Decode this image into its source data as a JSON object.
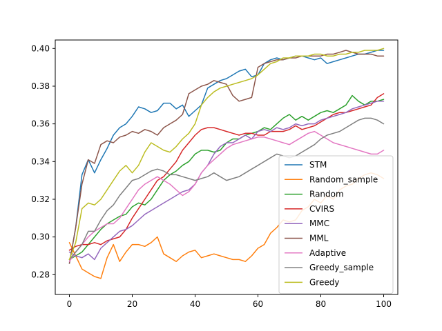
{
  "chart_data": {
    "type": "line",
    "title": "",
    "xlabel": "",
    "ylabel": "",
    "xlim": [
      -4.5,
      104.5
    ],
    "ylim": [
      0.2695,
      0.4045
    ],
    "xticks": [
      0,
      20,
      40,
      60,
      80,
      100
    ],
    "yticks": [
      0.28,
      0.3,
      0.32,
      0.34,
      0.36,
      0.38,
      0.4
    ],
    "ytick_labels": [
      "0.28",
      "0.30",
      "0.32",
      "0.34",
      "0.36",
      "0.38",
      "0.40"
    ],
    "grid": false,
    "legend_position": "lower-right",
    "x": [
      0,
      2,
      4,
      6,
      8,
      10,
      12,
      14,
      16,
      18,
      20,
      22,
      24,
      26,
      28,
      30,
      32,
      34,
      36,
      38,
      40,
      42,
      44,
      46,
      48,
      50,
      52,
      54,
      56,
      58,
      60,
      62,
      64,
      66,
      68,
      70,
      72,
      74,
      76,
      78,
      80,
      82,
      84,
      86,
      88,
      90,
      92,
      94,
      96,
      98,
      100
    ],
    "series": [
      {
        "name": "STM",
        "color": "#1f77b4",
        "values": [
          0.286,
          0.305,
          0.333,
          0.341,
          0.334,
          0.341,
          0.347,
          0.354,
          0.358,
          0.36,
          0.364,
          0.369,
          0.368,
          0.366,
          0.367,
          0.371,
          0.371,
          0.368,
          0.37,
          0.364,
          0.367,
          0.37,
          0.379,
          0.381,
          0.383,
          0.384,
          0.386,
          0.388,
          0.389,
          0.385,
          0.386,
          0.392,
          0.394,
          0.395,
          0.394,
          0.395,
          0.396,
          0.396,
          0.395,
          0.394,
          0.395,
          0.392,
          0.393,
          0.394,
          0.395,
          0.396,
          0.397,
          0.397,
          0.398,
          0.399,
          0.399
        ]
      },
      {
        "name": "Random_sample",
        "color": "#ff7f0e",
        "values": [
          0.297,
          0.29,
          0.283,
          0.281,
          0.279,
          0.278,
          0.289,
          0.296,
          0.287,
          0.292,
          0.296,
          0.296,
          0.295,
          0.297,
          0.3,
          0.291,
          0.289,
          0.287,
          0.29,
          0.292,
          0.293,
          0.289,
          0.29,
          0.291,
          0.29,
          0.289,
          0.288,
          0.288,
          0.287,
          0.29,
          0.294,
          0.296,
          0.302,
          0.305,
          0.309,
          0.308,
          0.309,
          0.314,
          0.316,
          0.32,
          0.318,
          0.322,
          0.32,
          0.325,
          0.327,
          0.328,
          0.331,
          0.333,
          0.334,
          0.333,
          0.331
        ]
      },
      {
        "name": "Random",
        "color": "#2ca02c",
        "values": [
          0.288,
          0.29,
          0.292,
          0.296,
          0.3,
          0.304,
          0.307,
          0.309,
          0.311,
          0.312,
          0.316,
          0.318,
          0.317,
          0.32,
          0.325,
          0.33,
          0.333,
          0.335,
          0.338,
          0.34,
          0.344,
          0.346,
          0.346,
          0.345,
          0.346,
          0.35,
          0.352,
          0.352,
          0.354,
          0.355,
          0.356,
          0.358,
          0.357,
          0.36,
          0.363,
          0.365,
          0.362,
          0.364,
          0.362,
          0.364,
          0.366,
          0.367,
          0.366,
          0.368,
          0.37,
          0.375,
          0.372,
          0.37,
          0.372,
          0.372,
          0.373
        ]
      },
      {
        "name": "CVIRS",
        "color": "#d62728",
        "values": [
          0.293,
          0.295,
          0.296,
          0.296,
          0.297,
          0.296,
          0.298,
          0.299,
          0.3,
          0.304,
          0.31,
          0.315,
          0.32,
          0.325,
          0.33,
          0.332,
          0.336,
          0.34,
          0.346,
          0.35,
          0.354,
          0.357,
          0.358,
          0.358,
          0.357,
          0.356,
          0.355,
          0.354,
          0.355,
          0.355,
          0.354,
          0.354,
          0.356,
          0.356,
          0.356,
          0.357,
          0.359,
          0.357,
          0.358,
          0.359,
          0.361,
          0.363,
          0.365,
          0.366,
          0.366,
          0.367,
          0.368,
          0.369,
          0.37,
          0.374,
          0.376
        ]
      },
      {
        "name": "MMC",
        "color": "#9467bd",
        "values": [
          0.292,
          0.29,
          0.289,
          0.291,
          0.288,
          0.294,
          0.297,
          0.3,
          0.303,
          0.304,
          0.306,
          0.309,
          0.312,
          0.314,
          0.316,
          0.318,
          0.32,
          0.322,
          0.324,
          0.325,
          0.328,
          0.334,
          0.338,
          0.344,
          0.348,
          0.35,
          0.35,
          0.352,
          0.354,
          0.352,
          0.356,
          0.357,
          0.356,
          0.358,
          0.357,
          0.358,
          0.36,
          0.359,
          0.36,
          0.36,
          0.362,
          0.363,
          0.364,
          0.365,
          0.366,
          0.368,
          0.369,
          0.37,
          0.371,
          0.372,
          0.372
        ]
      },
      {
        "name": "MML",
        "color": "#8c564b",
        "values": [
          0.286,
          0.305,
          0.328,
          0.341,
          0.339,
          0.349,
          0.351,
          0.35,
          0.353,
          0.354,
          0.356,
          0.355,
          0.357,
          0.356,
          0.354,
          0.358,
          0.36,
          0.362,
          0.365,
          0.376,
          0.378,
          0.38,
          0.381,
          0.383,
          0.382,
          0.381,
          0.375,
          0.372,
          0.373,
          0.374,
          0.39,
          0.392,
          0.393,
          0.394,
          0.394,
          0.395,
          0.395,
          0.396,
          0.396,
          0.396,
          0.396,
          0.397,
          0.397,
          0.398,
          0.399,
          0.398,
          0.397,
          0.397,
          0.397,
          0.396,
          0.396
        ]
      },
      {
        "name": "Adaptive",
        "color": "#e377c2",
        "values": [
          0.287,
          0.292,
          0.296,
          0.3,
          0.303,
          0.305,
          0.307,
          0.307,
          0.31,
          0.315,
          0.32,
          0.325,
          0.328,
          0.33,
          0.332,
          0.33,
          0.328,
          0.325,
          0.322,
          0.324,
          0.328,
          0.334,
          0.338,
          0.341,
          0.344,
          0.347,
          0.349,
          0.35,
          0.351,
          0.352,
          0.353,
          0.353,
          0.352,
          0.351,
          0.35,
          0.349,
          0.351,
          0.353,
          0.355,
          0.356,
          0.354,
          0.352,
          0.35,
          0.349,
          0.348,
          0.347,
          0.346,
          0.345,
          0.344,
          0.344,
          0.346
        ]
      },
      {
        "name": "Greedy_sample",
        "color": "#7f7f7f",
        "values": [
          0.288,
          0.292,
          0.296,
          0.303,
          0.303,
          0.309,
          0.314,
          0.317,
          0.322,
          0.326,
          0.33,
          0.331,
          0.333,
          0.335,
          0.336,
          0.335,
          0.333,
          0.333,
          0.332,
          0.331,
          0.33,
          0.331,
          0.332,
          0.334,
          0.332,
          0.33,
          0.331,
          0.332,
          0.334,
          0.336,
          0.338,
          0.34,
          0.342,
          0.344,
          0.343,
          0.342,
          0.343,
          0.345,
          0.347,
          0.349,
          0.352,
          0.354,
          0.355,
          0.356,
          0.358,
          0.36,
          0.362,
          0.363,
          0.363,
          0.362,
          0.36
        ]
      },
      {
        "name": "Greedy",
        "color": "#bcbd22",
        "values": [
          0.288,
          0.297,
          0.315,
          0.318,
          0.317,
          0.32,
          0.325,
          0.33,
          0.335,
          0.338,
          0.334,
          0.338,
          0.345,
          0.35,
          0.348,
          0.346,
          0.345,
          0.348,
          0.352,
          0.355,
          0.36,
          0.37,
          0.374,
          0.377,
          0.379,
          0.38,
          0.381,
          0.382,
          0.383,
          0.384,
          0.386,
          0.389,
          0.392,
          0.393,
          0.395,
          0.395,
          0.396,
          0.396,
          0.396,
          0.397,
          0.397,
          0.396,
          0.396,
          0.397,
          0.397,
          0.398,
          0.398,
          0.399,
          0.399,
          0.399,
          0.4
        ]
      }
    ]
  }
}
